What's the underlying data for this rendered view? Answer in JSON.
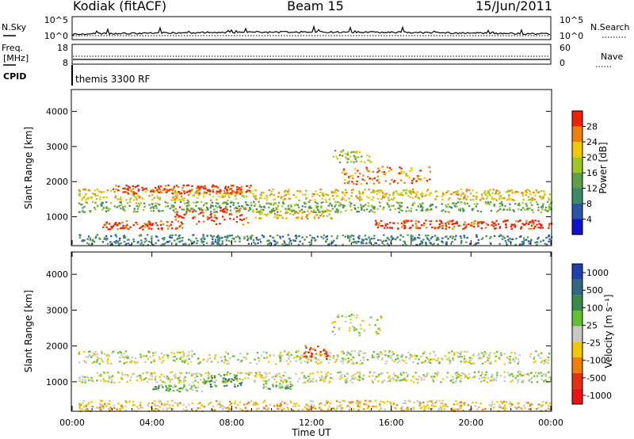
{
  "header": {
    "station": "Kodiak (fitACF)",
    "beam": "Beam 15",
    "date": "15/Jun/2011"
  },
  "strips": {
    "nsky_label": "N.Sky",
    "nsearch_label": "N.Search",
    "nsky_ticks": [
      "10^5",
      "10^0"
    ],
    "nsearch_ticks": [
      "10^5",
      "10^0"
    ],
    "freq_label": "Freq.",
    "freq_unit": "[MHz]",
    "freq_ticks": [
      "18",
      "8"
    ],
    "nave_label": "Nave",
    "nave_ticks": [
      "60",
      "0"
    ],
    "cpid_label": "CPID",
    "cpid_value": "themis 3300 RF"
  },
  "chart_data": [
    {
      "type": "heatmap",
      "panel": "power",
      "ylabel": "Slant Range [km]",
      "yticks": [
        "1000",
        "2000",
        "3000",
        "4000"
      ],
      "ylim": [
        200,
        4600
      ],
      "xlim_hours": [
        0,
        24
      ],
      "colorbar_label": "Power [dB]",
      "colorbar_ticks": [
        "4",
        "8",
        "12",
        "16",
        "20",
        "24",
        "28"
      ],
      "colors": [
        "#1010d0",
        "#2855a8",
        "#3a8a6a",
        "#5ca04a",
        "#a0c820",
        "#f0c800",
        "#f08000",
        "#f02000"
      ],
      "scatter_bands": [
        {
          "t0": 0.3,
          "t1": 24,
          "r": 1650,
          "w": 160,
          "level": 5
        },
        {
          "t0": 2.0,
          "t1": 9.0,
          "r": 1800,
          "w": 130,
          "level": 7
        },
        {
          "t0": 1.5,
          "t1": 5.5,
          "r": 780,
          "w": 120,
          "level": 7
        },
        {
          "t0": 5.0,
          "t1": 8.8,
          "r": 1050,
          "w": 250,
          "level": 7
        },
        {
          "t0": 9.0,
          "t1": 13.0,
          "r": 1100,
          "w": 130,
          "level": 5
        },
        {
          "t0": 13.5,
          "t1": 18.0,
          "r": 2200,
          "w": 250,
          "level": 6
        },
        {
          "t0": 13.0,
          "t1": 15.0,
          "r": 2750,
          "w": 180,
          "level": 4
        },
        {
          "t0": 15.0,
          "t1": 24.0,
          "r": 800,
          "w": 120,
          "level": 7
        },
        {
          "t0": 0.3,
          "t1": 24,
          "r": 1300,
          "w": 150,
          "level": 3
        },
        {
          "t0": 0.3,
          "t1": 24,
          "r": 360,
          "w": 150,
          "level": 2
        }
      ]
    },
    {
      "type": "heatmap",
      "panel": "velocity",
      "xlabel": "Time UT",
      "xticks": [
        "00:00",
        "04:00",
        "08:00",
        "12:00",
        "16:00",
        "20:00",
        "00:00"
      ],
      "ylabel": "Slant Range [km]",
      "yticks": [
        "1000",
        "2000",
        "3000",
        "4000"
      ],
      "ylim": [
        200,
        4600
      ],
      "xlim_hours": [
        0,
        24
      ],
      "colorbar_label": "Velocity [m s⁻¹]",
      "colorbar_ticks": [
        "1000",
        "500",
        "100",
        "25",
        "-25",
        "-100",
        "-500",
        "-1000"
      ],
      "colors": [
        "#2040b0",
        "#306880",
        "#3a8a4a",
        "#60c030",
        "#c8c8c0",
        "#f0c800",
        "#f08000",
        "#e83010",
        "#f01010"
      ],
      "scatter_bands": [
        {
          "t0": 0.3,
          "t1": 24,
          "r": 1700,
          "w": 180,
          "level": 4
        },
        {
          "t0": 0.3,
          "t1": 24,
          "r": 1150,
          "w": 150,
          "level": 4
        },
        {
          "t0": 6.5,
          "t1": 8.5,
          "r": 1050,
          "w": 170,
          "level": 2
        },
        {
          "t0": 4.0,
          "t1": 6.5,
          "r": 850,
          "w": 100,
          "level": 3
        },
        {
          "t0": 9.5,
          "t1": 11.0,
          "r": 900,
          "w": 80,
          "level": 3
        },
        {
          "t0": 11.5,
          "t1": 12.8,
          "r": 1850,
          "w": 200,
          "level": 7
        },
        {
          "t0": 13.0,
          "t1": 15.5,
          "r": 2600,
          "w": 300,
          "level": 4
        },
        {
          "t0": 0.3,
          "t1": 24,
          "r": 350,
          "w": 150,
          "level": 5
        }
      ]
    }
  ]
}
